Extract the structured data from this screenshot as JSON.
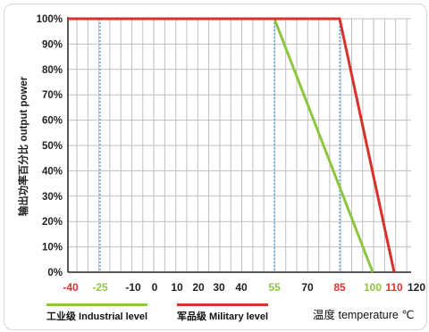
{
  "chart_data": {
    "type": "line",
    "ylabel": "输出功率百分比 output power",
    "xlabel": "温度 temperature ℃",
    "xlim": [
      -45,
      120
    ],
    "ylim": [
      0,
      100
    ],
    "x_ticks": [
      {
        "value": -40,
        "label": "-40",
        "color": "#e03030"
      },
      {
        "value": -25,
        "label": "-25",
        "color": "#8cc63f"
      },
      {
        "value": -10,
        "label": "-10",
        "color": "#222222"
      },
      {
        "value": 0,
        "label": "0",
        "color": "#222222"
      },
      {
        "value": 10,
        "label": "10",
        "color": "#222222"
      },
      {
        "value": 20,
        "label": "20",
        "color": "#222222"
      },
      {
        "value": 30,
        "label": "30",
        "color": "#222222"
      },
      {
        "value": 40,
        "label": "40",
        "color": "#222222"
      },
      {
        "value": 55,
        "label": "55",
        "color": "#8cc63f"
      },
      {
        "value": 70,
        "label": "70",
        "color": "#222222"
      },
      {
        "value": 85,
        "label": "85",
        "color": "#e03030"
      },
      {
        "value": 100,
        "label": "100",
        "color": "#8cc63f"
      },
      {
        "value": 110,
        "label": "110",
        "color": "#e03030"
      },
      {
        "value": 120,
        "label": "120",
        "color": "#222222"
      }
    ],
    "y_ticks": [
      {
        "value": 100,
        "label": "100%"
      },
      {
        "value": 90,
        "label": "90%"
      },
      {
        "value": 80,
        "label": "80%"
      },
      {
        "value": 70,
        "label": "70%"
      },
      {
        "value": 60,
        "label": "60%"
      },
      {
        "value": 50,
        "label": "50%"
      },
      {
        "value": 40,
        "label": "40%"
      },
      {
        "value": 30,
        "label": "30%"
      },
      {
        "value": 20,
        "label": "20%"
      },
      {
        "value": 10,
        "label": "10%"
      },
      {
        "value": 0,
        "label": "0%"
      }
    ],
    "reference_lines_x": [
      -25,
      55,
      85
    ],
    "series": [
      {
        "name": "工业级 Industrial level",
        "color": "#8cc63f",
        "points": [
          [
            -25,
            100
          ],
          [
            55,
            100
          ],
          [
            100,
            0
          ]
        ]
      },
      {
        "name": "军品级 Military level",
        "color": "#d9302b",
        "points": [
          [
            -45,
            100
          ],
          [
            85,
            100
          ],
          [
            110,
            0
          ]
        ]
      }
    ],
    "grid": true,
    "legend_position": "bottom"
  },
  "colors": {
    "grid": "#bfbfbf",
    "reference": "#4aa3df",
    "axis": "#222222"
  }
}
